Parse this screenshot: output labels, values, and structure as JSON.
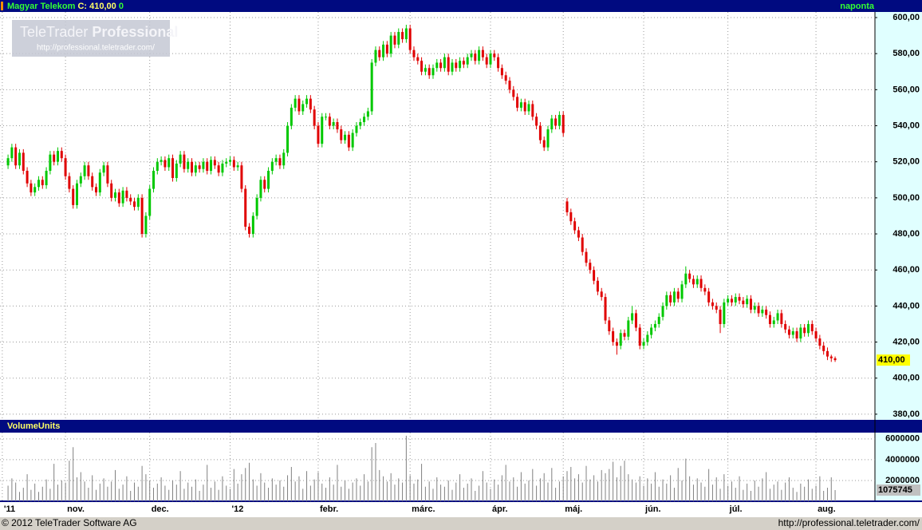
{
  "header": {
    "title": "Magyar Telekom",
    "quote": "C: 410,00",
    "change": "0",
    "period": "naponta"
  },
  "watermark": {
    "brand": "TeleTrader",
    "product": "Professional",
    "url": "http://professional.teletrader.com/"
  },
  "chart_data": [
    {
      "type": "candlestick",
      "up_color": "#00c800",
      "down_color": "#e00000",
      "grid": true,
      "xlim": [
        -2.1,
        226.4
      ],
      "xticks": [
        {
          "value": -1.5,
          "label": "'11"
        },
        {
          "value": 15,
          "label": "nov."
        },
        {
          "value": 37,
          "label": "dec."
        },
        {
          "value": 58,
          "label": "'12"
        },
        {
          "value": 81,
          "label": "febr."
        },
        {
          "value": 105,
          "label": "márc."
        },
        {
          "value": 126,
          "label": "ápr."
        },
        {
          "value": 145,
          "label": "máj."
        },
        {
          "value": 166,
          "label": "jún."
        },
        {
          "value": 188,
          "label": "júl."
        },
        {
          "value": 211,
          "label": "aug."
        }
      ],
      "ylim": [
        377.3,
        603.1
      ],
      "yticks": [
        {
          "value": 380,
          "label": "380,00"
        },
        {
          "value": 400,
          "label": "400,00"
        },
        {
          "value": 420,
          "label": "420,00"
        },
        {
          "value": 440,
          "label": "440,00"
        },
        {
          "value": 460,
          "label": "460,00"
        },
        {
          "value": 480,
          "label": "480,00"
        },
        {
          "value": 500,
          "label": "500,00"
        },
        {
          "value": 520,
          "label": "520,00"
        },
        {
          "value": 540,
          "label": "540,00"
        },
        {
          "value": 560,
          "label": "560,00"
        },
        {
          "value": 580,
          "label": "580,00"
        },
        {
          "value": 600,
          "label": "600,00"
        }
      ],
      "last_value": 410,
      "last_value_label": "410,00",
      "open": [
        518,
        522,
        528,
        518,
        525,
        515,
        508,
        503,
        506,
        510,
        507,
        515,
        524,
        520,
        526,
        522,
        512,
        505,
        496,
        508,
        512,
        518,
        512,
        506,
        503,
        514,
        518,
        508,
        500,
        503,
        497,
        504,
        500,
        498,
        495,
        500,
        480,
        490,
        505,
        515,
        520,
        521,
        517,
        522,
        511,
        519,
        524,
        516,
        520,
        514,
        518,
        516,
        520,
        515,
        521,
        518,
        514,
        519,
        520,
        521,
        517,
        518,
        505,
        484,
        480,
        490,
        500,
        510,
        505,
        515,
        520,
        522,
        518,
        525,
        540,
        550,
        555,
        548,
        552,
        555,
        549,
        540,
        530,
        545,
        545,
        540,
        542,
        538,
        532,
        535,
        528,
        536,
        540,
        542,
        545,
        548,
        575,
        582,
        578,
        585,
        580,
        590,
        585,
        592,
        588,
        594,
        582,
        578,
        576,
        570,
        572,
        568,
        572,
        575,
        572,
        578,
        570,
        575,
        572,
        576,
        574,
        578,
        580,
        576,
        582,
        578,
        574,
        580,
        578,
        572,
        568,
        565,
        560,
        556,
        550,
        553,
        548,
        552,
        545,
        540,
        532,
        528,
        538,
        544,
        540,
        546,
        498,
        492,
        487,
        482,
        478,
        470,
        464,
        460,
        454,
        448,
        445,
        432,
        426,
        420,
        418,
        425,
        423,
        432,
        436,
        428,
        418,
        420,
        424,
        428,
        430,
        434,
        440,
        446,
        442,
        448,
        444,
        452,
        458,
        455,
        452,
        455,
        450,
        448,
        442,
        440,
        438,
        430,
        442,
        444,
        442,
        445,
        443,
        441,
        444,
        438,
        440,
        436,
        438,
        435,
        430,
        432,
        436,
        430,
        427,
        424,
        426,
        422,
        428,
        425,
        430,
        426,
        422,
        418,
        415,
        412,
        411
      ],
      "high": [
        524,
        530,
        530,
        527,
        527,
        517,
        510,
        508,
        512,
        512,
        517,
        526,
        526,
        528,
        528,
        524,
        514,
        507,
        510,
        514,
        520,
        520,
        514,
        508,
        516,
        520,
        520,
        510,
        505,
        505,
        506,
        506,
        502,
        500,
        502,
        502,
        492,
        507,
        517,
        522,
        523,
        523,
        524,
        524,
        521,
        526,
        526,
        522,
        522,
        520,
        520,
        522,
        522,
        523,
        523,
        520,
        521,
        522,
        523,
        523,
        520,
        520,
        507,
        486,
        492,
        502,
        512,
        512,
        517,
        522,
        524,
        524,
        527,
        542,
        552,
        557,
        557,
        554,
        557,
        557,
        551,
        542,
        547,
        547,
        547,
        544,
        544,
        540,
        537,
        537,
        538,
        542,
        544,
        547,
        550,
        577,
        584,
        584,
        587,
        587,
        592,
        592,
        594,
        594,
        596,
        596,
        584,
        580,
        578,
        574,
        574,
        574,
        577,
        577,
        580,
        580,
        577,
        577,
        578,
        578,
        580,
        582,
        582,
        584,
        584,
        580,
        582,
        582,
        580,
        574,
        570,
        567,
        562,
        558,
        555,
        555,
        554,
        554,
        547,
        542,
        534,
        540,
        546,
        546,
        548,
        548,
        500,
        494,
        489,
        484,
        480,
        472,
        466,
        462,
        456,
        450,
        447,
        434,
        428,
        422,
        427,
        427,
        434,
        440,
        438,
        430,
        422,
        426,
        430,
        432,
        436,
        442,
        448,
        448,
        450,
        450,
        454,
        462,
        460,
        457,
        457,
        457,
        452,
        450,
        444,
        442,
        440,
        444,
        446,
        446,
        447,
        447,
        445,
        446,
        446,
        442,
        442,
        440,
        440,
        437,
        434,
        438,
        438,
        432,
        429,
        428,
        428,
        430,
        430,
        432,
        432,
        428,
        424,
        420,
        417,
        413,
        412
      ],
      "low": [
        516,
        520,
        516,
        516,
        513,
        506,
        501,
        501,
        504,
        505,
        505,
        513,
        518,
        518,
        520,
        510,
        503,
        494,
        494,
        506,
        510,
        510,
        504,
        501,
        501,
        512,
        506,
        498,
        498,
        495,
        495,
        498,
        496,
        493,
        493,
        478,
        478,
        488,
        503,
        513,
        518,
        515,
        515,
        509,
        509,
        517,
        514,
        514,
        512,
        512,
        514,
        514,
        513,
        513,
        516,
        512,
        512,
        517,
        518,
        515,
        515,
        503,
        482,
        478,
        478,
        488,
        498,
        503,
        503,
        513,
        518,
        516,
        516,
        523,
        538,
        548,
        546,
        546,
        550,
        547,
        538,
        528,
        528,
        543,
        538,
        538,
        536,
        530,
        530,
        526,
        526,
        534,
        538,
        540,
        543,
        546,
        573,
        576,
        576,
        578,
        578,
        583,
        583,
        586,
        586,
        580,
        576,
        574,
        568,
        568,
        566,
        566,
        570,
        570,
        570,
        568,
        568,
        570,
        570,
        572,
        572,
        576,
        574,
        574,
        576,
        572,
        572,
        576,
        570,
        566,
        563,
        558,
        554,
        548,
        548,
        546,
        546,
        543,
        538,
        530,
        526,
        526,
        536,
        538,
        538,
        534,
        490,
        485,
        480,
        476,
        468,
        462,
        458,
        452,
        446,
        443,
        430,
        424,
        418,
        413,
        416,
        421,
        421,
        430,
        426,
        416,
        416,
        418,
        422,
        426,
        428,
        432,
        438,
        440,
        440,
        442,
        442,
        450,
        453,
        450,
        450,
        448,
        446,
        440,
        438,
        436,
        425,
        428,
        440,
        440,
        440,
        441,
        439,
        439,
        436,
        436,
        434,
        434,
        433,
        428,
        428,
        430,
        428,
        425,
        422,
        422,
        420,
        420,
        423,
        423,
        424,
        420,
        416,
        413,
        410,
        409,
        409
      ],
      "close": [
        522,
        528,
        518,
        525,
        515,
        508,
        503,
        506,
        510,
        507,
        515,
        524,
        520,
        526,
        522,
        512,
        505,
        496,
        508,
        512,
        518,
        512,
        506,
        503,
        514,
        518,
        508,
        500,
        503,
        497,
        504,
        500,
        498,
        495,
        500,
        480,
        490,
        505,
        515,
        520,
        521,
        517,
        522,
        511,
        519,
        524,
        516,
        520,
        514,
        518,
        516,
        520,
        515,
        521,
        518,
        514,
        519,
        520,
        521,
        517,
        518,
        505,
        484,
        480,
        490,
        500,
        510,
        505,
        515,
        520,
        522,
        518,
        525,
        540,
        550,
        555,
        548,
        552,
        555,
        549,
        540,
        530,
        545,
        545,
        540,
        542,
        538,
        532,
        535,
        528,
        536,
        540,
        542,
        545,
        548,
        575,
        582,
        578,
        585,
        580,
        590,
        585,
        592,
        588,
        594,
        582,
        578,
        576,
        570,
        572,
        568,
        572,
        575,
        572,
        578,
        570,
        575,
        572,
        576,
        574,
        578,
        580,
        576,
        582,
        578,
        574,
        580,
        578,
        572,
        568,
        565,
        560,
        556,
        550,
        553,
        548,
        552,
        545,
        540,
        532,
        528,
        538,
        544,
        540,
        546,
        536,
        492,
        487,
        482,
        478,
        470,
        464,
        460,
        454,
        448,
        445,
        432,
        426,
        420,
        418,
        425,
        423,
        432,
        436,
        428,
        418,
        420,
        424,
        428,
        430,
        434,
        440,
        446,
        442,
        448,
        444,
        452,
        458,
        455,
        452,
        455,
        450,
        448,
        442,
        440,
        438,
        430,
        442,
        444,
        442,
        445,
        443,
        441,
        444,
        438,
        440,
        436,
        438,
        435,
        430,
        432,
        436,
        430,
        427,
        424,
        426,
        422,
        428,
        425,
        430,
        426,
        422,
        418,
        415,
        412,
        411,
        410
      ]
    },
    {
      "type": "bar",
      "title": "VolumeUnits",
      "color": "#808080",
      "xlim": [
        -2.1,
        226.4
      ],
      "ylim": [
        0,
        6600000
      ],
      "yticks": [
        2000000,
        4000000,
        6000000
      ],
      "values": [
        1500000,
        2200000,
        1800000,
        900000,
        1300000,
        2600000,
        1100000,
        1700000,
        900000,
        1400000,
        2100000,
        1200000,
        3600000,
        1600000,
        2000000,
        1800000,
        3900000,
        5200000,
        2300000,
        2800000,
        1900000,
        1300000,
        2500000,
        1100000,
        1700000,
        2200000,
        1400000,
        1900000,
        3000000,
        1200000,
        1600000,
        2400000,
        1000000,
        1800000,
        1400000,
        3400000,
        2600000,
        2000000,
        1300000,
        1700000,
        2300000,
        1500000,
        1100000,
        2000000,
        1600000,
        2900000,
        1200000,
        1800000,
        1400000,
        2100000,
        1000000,
        1600000,
        3500000,
        1300000,
        1900000,
        1100000,
        2400000,
        1500000,
        1200000,
        3100000,
        1700000,
        2600000,
        3200000,
        3700000,
        2100000,
        1500000,
        2700000,
        1800000,
        1300000,
        2200000,
        1600000,
        2000000,
        1400000,
        2500000,
        3300000,
        1900000,
        2400000,
        1200000,
        2900000,
        1500000,
        2100000,
        2800000,
        1700000,
        1300000,
        2300000,
        1600000,
        3500000,
        1400000,
        2000000,
        1200000,
        1800000,
        2200000,
        1500000,
        2600000,
        1900000,
        5200000,
        5600000,
        3000000,
        2400000,
        1900000,
        2700000,
        1600000,
        2200000,
        1800000,
        6300000,
        2500000,
        1700000,
        2100000,
        3600000,
        1400000,
        1900000,
        1200000,
        2300000,
        1600000,
        1400000,
        2000000,
        1100000,
        1800000,
        2600000,
        1300000,
        1700000,
        2200000,
        1000000,
        1500000,
        2900000,
        1800000,
        1200000,
        2100000,
        1600000,
        2500000,
        3500000,
        1900000,
        2300000,
        1400000,
        2800000,
        1700000,
        2000000,
        3100000,
        1500000,
        2200000,
        2700000,
        1800000,
        3200000,
        1300000,
        1900000,
        2400000,
        2900000,
        3300000,
        2200000,
        2600000,
        1800000,
        3400000,
        2100000,
        2500000,
        1900000,
        3000000,
        2700000,
        3100000,
        3800000,
        2300000,
        3400000,
        3900000,
        2600000,
        2100000,
        1800000,
        2400000,
        1500000,
        2200000,
        1700000,
        2800000,
        1400000,
        2100000,
        1700000,
        2500000,
        1300000,
        3200000,
        2000000,
        4100000,
        2400000,
        1600000,
        2200000,
        1800000,
        1400000,
        3100000,
        1600000,
        2300000,
        1200000,
        2600000,
        1500000,
        1900000,
        1300000,
        2400000,
        1100000,
        1700000,
        1000000,
        2000000,
        1400000,
        2200000,
        2800000,
        1200000,
        1600000,
        1900000,
        1100000,
        1800000,
        2300000,
        1300000,
        900000,
        1700000,
        1400000,
        2100000,
        1200000,
        1500000,
        2400000,
        1000000,
        1300000,
        2300000,
        1075745
      ]
    }
  ],
  "footer": {
    "copyright": "© 2012 TeleTrader Software AG",
    "url": "http://professional.teletrader.com/"
  }
}
